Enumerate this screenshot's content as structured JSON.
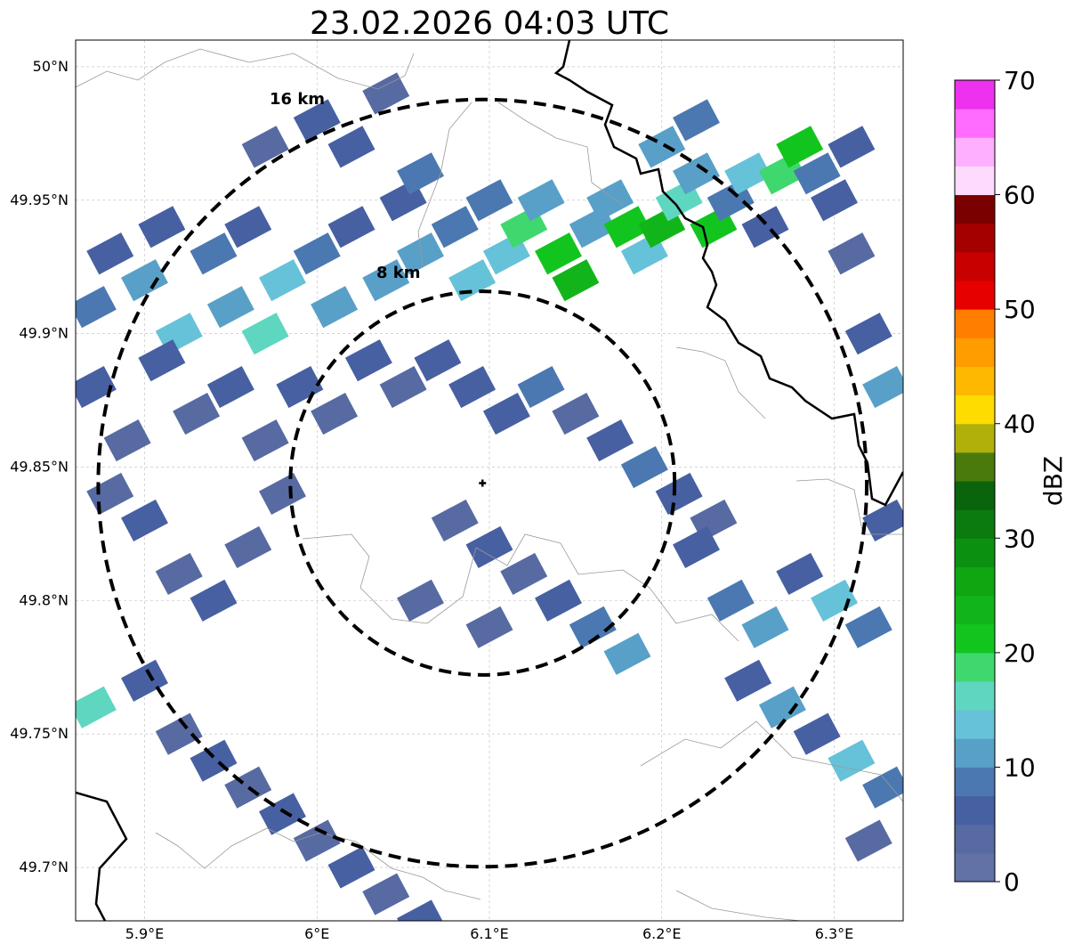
{
  "title": "23.02.2026 04:03 UTC",
  "map": {
    "lon_range": [
      5.86,
      6.34
    ],
    "lat_range": [
      49.68,
      50.01
    ],
    "radar_center": {
      "lon": 6.096,
      "lat": 49.844
    },
    "x_ticks": [
      {
        "value": 5.9,
        "label": "5.9°E"
      },
      {
        "value": 6.0,
        "label": "6°E"
      },
      {
        "value": 6.1,
        "label": "6.1°E"
      },
      {
        "value": 6.2,
        "label": "6.2°E"
      },
      {
        "value": 6.3,
        "label": "6.3°E"
      }
    ],
    "y_ticks": [
      {
        "value": 50.0,
        "label": "50°N"
      },
      {
        "value": 49.95,
        "label": "49.95°N"
      },
      {
        "value": 49.9,
        "label": "49.9°N"
      },
      {
        "value": 49.85,
        "label": "49.85°N"
      },
      {
        "value": 49.8,
        "label": "49.8°N"
      },
      {
        "value": 49.75,
        "label": "49.75°N"
      },
      {
        "value": 49.7,
        "label": "49.7°N"
      }
    ],
    "grid": true,
    "range_rings": [
      {
        "radius_km": 16,
        "label": "16 km"
      },
      {
        "radius_km": 8,
        "label": "8 km"
      }
    ]
  },
  "colorbar": {
    "label": "dBZ",
    "min": 0,
    "max": 70,
    "tick_values": [
      0,
      10,
      20,
      30,
      40,
      50,
      60,
      70
    ],
    "tick_labels": [
      "0",
      "10",
      "20",
      "30",
      "40",
      "50",
      "60",
      "70"
    ],
    "colors": [
      "#6272a6",
      "#576aa2",
      "#4760a2",
      "#4b78b0",
      "#58a0c8",
      "#66c2d8",
      "#5fd6c0",
      "#3fd86e",
      "#12c51e",
      "#12b519",
      "#0fa612",
      "#0c9010",
      "#0b7a0f",
      "#09640c",
      "#4a7a0b",
      "#afb00a",
      "#ffdc00",
      "#ffb800",
      "#ff9c00",
      "#ff7e00",
      "#e60000",
      "#c80000",
      "#a50000",
      "#7a0000",
      "#ffdaff",
      "#ffafff",
      "#ff6cff",
      "#ee31ee"
    ]
  },
  "reflectivity_cells": [
    [
      5.87,
      49.91,
      9
    ],
    [
      5.88,
      49.93,
      6
    ],
    [
      5.9,
      49.92,
      11
    ],
    [
      5.91,
      49.94,
      5
    ],
    [
      5.92,
      49.9,
      14
    ],
    [
      5.94,
      49.93,
      8
    ],
    [
      5.95,
      49.91,
      12
    ],
    [
      5.96,
      49.94,
      6
    ],
    [
      5.97,
      49.9,
      16
    ],
    [
      5.98,
      49.92,
      13
    ],
    [
      6.0,
      49.93,
      9
    ],
    [
      6.01,
      49.91,
      11
    ],
    [
      6.02,
      49.94,
      7
    ],
    [
      6.04,
      49.92,
      12
    ],
    [
      6.05,
      49.95,
      5
    ],
    [
      6.06,
      49.93,
      10
    ],
    [
      6.08,
      49.94,
      8
    ],
    [
      6.09,
      49.92,
      13
    ],
    [
      6.1,
      49.95,
      9
    ],
    [
      6.11,
      49.93,
      14
    ],
    [
      6.12,
      49.94,
      19
    ],
    [
      6.13,
      49.95,
      11
    ],
    [
      6.14,
      49.93,
      22
    ],
    [
      6.15,
      49.92,
      24
    ],
    [
      6.16,
      49.94,
      12
    ],
    [
      6.17,
      49.95,
      10
    ],
    [
      6.18,
      49.94,
      21
    ],
    [
      6.19,
      49.93,
      14
    ],
    [
      6.2,
      49.94,
      23
    ],
    [
      6.21,
      49.95,
      17
    ],
    [
      6.22,
      49.96,
      11
    ],
    [
      6.23,
      49.94,
      20
    ],
    [
      6.24,
      49.95,
      9
    ],
    [
      6.25,
      49.96,
      13
    ],
    [
      6.26,
      49.94,
      6
    ],
    [
      6.27,
      49.96,
      18
    ],
    [
      6.28,
      49.97,
      22
    ],
    [
      6.29,
      49.96,
      9
    ],
    [
      6.3,
      49.95,
      5
    ],
    [
      6.31,
      49.93,
      4
    ],
    [
      5.87,
      49.88,
      5
    ],
    [
      5.89,
      49.86,
      4
    ],
    [
      5.91,
      49.89,
      7
    ],
    [
      5.93,
      49.87,
      3
    ],
    [
      5.95,
      49.88,
      6
    ],
    [
      5.97,
      49.86,
      4
    ],
    [
      5.99,
      49.88,
      5
    ],
    [
      6.01,
      49.87,
      3
    ],
    [
      6.03,
      49.89,
      6
    ],
    [
      6.05,
      49.88,
      4
    ],
    [
      6.07,
      49.89,
      7
    ],
    [
      6.09,
      49.88,
      5
    ],
    [
      6.11,
      49.87,
      6
    ],
    [
      6.13,
      49.88,
      8
    ],
    [
      6.15,
      49.87,
      4
    ],
    [
      6.17,
      49.86,
      7
    ],
    [
      6.19,
      49.85,
      9
    ],
    [
      6.21,
      49.84,
      5
    ],
    [
      6.23,
      49.83,
      4
    ],
    [
      5.88,
      49.84,
      3
    ],
    [
      5.9,
      49.83,
      5
    ],
    [
      5.92,
      49.81,
      4
    ],
    [
      5.94,
      49.8,
      6
    ],
    [
      5.96,
      49.82,
      3
    ],
    [
      5.98,
      49.84,
      4
    ],
    [
      5.9,
      49.77,
      5
    ],
    [
      5.87,
      49.76,
      16
    ],
    [
      5.92,
      49.75,
      4
    ],
    [
      5.94,
      49.74,
      6
    ],
    [
      5.96,
      49.73,
      3
    ],
    [
      5.98,
      49.72,
      5
    ],
    [
      6.0,
      49.71,
      4
    ],
    [
      6.02,
      49.7,
      6
    ],
    [
      6.04,
      49.69,
      3
    ],
    [
      6.06,
      49.68,
      5
    ],
    [
      6.08,
      49.83,
      4
    ],
    [
      6.1,
      49.82,
      5
    ],
    [
      6.12,
      49.81,
      4
    ],
    [
      6.14,
      49.8,
      6
    ],
    [
      6.16,
      49.79,
      9
    ],
    [
      6.18,
      49.78,
      11
    ],
    [
      6.1,
      49.79,
      3
    ],
    [
      6.06,
      49.8,
      4
    ],
    [
      6.22,
      49.82,
      5
    ],
    [
      6.24,
      49.8,
      8
    ],
    [
      6.26,
      49.79,
      12
    ],
    [
      6.28,
      49.81,
      6
    ],
    [
      6.3,
      49.8,
      14
    ],
    [
      6.32,
      49.79,
      9
    ],
    [
      6.25,
      49.77,
      7
    ],
    [
      6.27,
      49.76,
      11
    ],
    [
      6.29,
      49.75,
      5
    ],
    [
      6.31,
      49.74,
      13
    ],
    [
      6.33,
      49.73,
      8
    ],
    [
      6.32,
      49.71,
      4
    ],
    [
      6.33,
      49.83,
      6
    ],
    [
      6.32,
      49.9,
      7
    ],
    [
      6.33,
      49.88,
      10
    ],
    [
      6.0,
      49.98,
      5
    ],
    [
      6.02,
      49.97,
      6
    ],
    [
      6.04,
      49.99,
      4
    ],
    [
      5.97,
      49.97,
      3
    ],
    [
      6.06,
      49.96,
      8
    ],
    [
      6.2,
      49.97,
      12
    ],
    [
      6.22,
      49.98,
      9
    ],
    [
      6.31,
      49.97,
      6
    ]
  ]
}
